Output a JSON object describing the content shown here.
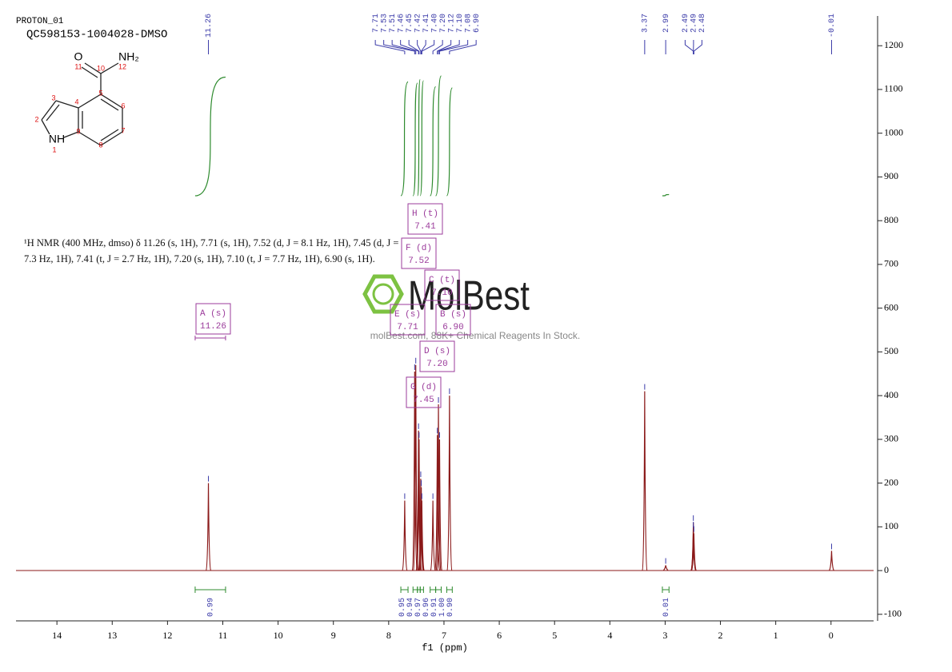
{
  "header": {
    "experiment": "PROTON_01",
    "sample": "QC598153-1004028-DMSO"
  },
  "description": "¹H NMR (400 MHz, dmso) δ 11.26 (s, 1H), 7.71 (s, 1H), 7.52 (d, J = 8.1 Hz, 1H), 7.45 (d, J = 7.3 Hz, 1H), 7.41 (t, J = 2.7 Hz, 1H), 7.20 (s, 1H), 7.10 (t, J = 7.7 Hz, 1H), 6.90 (s, 1H).",
  "molecule": {
    "atoms": [
      "O",
      "NH₂",
      "NH"
    ],
    "numbering": [
      1,
      2,
      3,
      4,
      5,
      6,
      7,
      8,
      9,
      10,
      11,
      12
    ]
  },
  "watermark": {
    "brand": "MolBest",
    "tagline": "molBest.com, 88K+ Chemical Reagents In Stock."
  },
  "chart_data": {
    "type": "nmr",
    "xlabel": "f1 (ppm)",
    "xlim": [
      14.74,
      -0.77
    ],
    "xticks": [
      14,
      13,
      12,
      11,
      10,
      9,
      8,
      7,
      6,
      5,
      4,
      3,
      2,
      1,
      0
    ],
    "ylim": [
      -115,
      1268
    ],
    "yticks": [
      -100,
      0,
      100,
      200,
      300,
      400,
      500,
      600,
      700,
      800,
      900,
      1000,
      1100,
      1200
    ],
    "color": "#8b1a1a",
    "label_color": "#3a3aa8",
    "x": [
      11.26,
      7.71,
      7.53,
      7.51,
      7.46,
      7.45,
      7.42,
      7.41,
      {
        "value": 7.4,
        "label": "7.40"
      },
      {
        "value": 7.2,
        "label": "7.20"
      },
      7.12,
      {
        "value": 7.1,
        "label": "7.10"
      },
      7.08,
      {
        "value": 6.9,
        "label": "6.90"
      },
      3.37,
      2.99,
      2.49,
      2.49,
      2.48,
      -0.01
    ],
    "values": [
      200,
      160,
      455,
      470,
      320,
      300,
      210,
      190,
      160,
      160,
      310,
      380,
      300,
      400,
      410,
      12,
      110,
      95,
      85,
      45
    ],
    "integrals": {
      "color": "#2e8b2e",
      "ranges": [
        [
          11.5,
          10.95
        ],
        [
          7.78,
          7.65
        ],
        [
          7.56,
          7.48
        ],
        [
          7.48,
          7.43
        ],
        [
          7.43,
          7.37
        ],
        [
          7.25,
          7.15
        ],
        [
          7.15,
          7.05
        ],
        [
          6.95,
          6.85
        ],
        [
          3.05,
          2.93
        ]
      ],
      "values": [
        0.99,
        0.95,
        0.94,
        0.97,
        0.96,
        0.91,
        1.0,
        0.9,
        0.01
      ],
      "value_labels": [
        "0.99",
        "0.95",
        "0.94",
        "0.97",
        "0.96",
        "0.91",
        "1.00",
        "0.90",
        "0.01"
      ]
    },
    "multiplets": [
      {
        "label": "A (s)",
        "shift": 11.26
      },
      {
        "label": "H (t)",
        "shift": 7.41
      },
      {
        "label": "F (d)",
        "shift": 7.52
      },
      {
        "label": "C (t)",
        "shift": {
          "value": 7.1,
          "label": "7.10"
        }
      },
      {
        "label": "E (s)",
        "shift": 7.71
      },
      {
        "label": "B (s)",
        "shift": {
          "value": 6.9,
          "label": "6.90"
        }
      },
      {
        "label": "D (s)",
        "shift": {
          "value": 7.2,
          "label": "7.20"
        }
      },
      {
        "label": "G (d)",
        "shift": 7.45
      }
    ]
  }
}
